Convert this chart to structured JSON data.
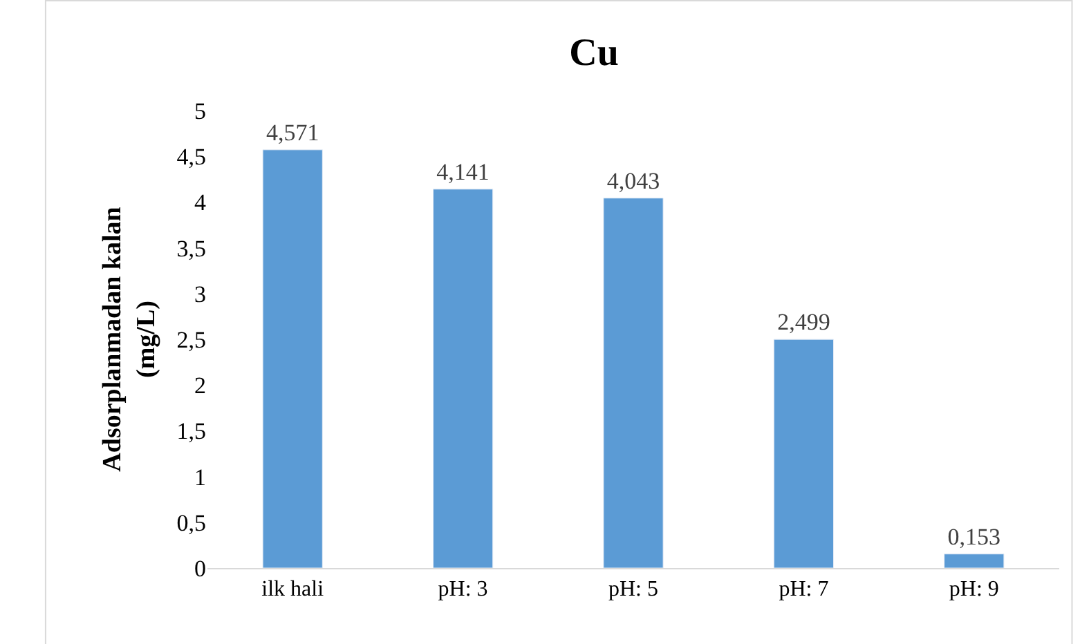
{
  "chart_data": {
    "type": "bar",
    "title": "Cu",
    "ylabel": "Adsorplanmadan kalan\n(mg/L)",
    "categories": [
      "ilk hali",
      "pH: 3",
      "pH: 5",
      "pH: 7",
      "pH: 9"
    ],
    "values": [
      4.571,
      4.141,
      4.043,
      2.499,
      0.153
    ],
    "value_labels": [
      "4,571",
      "4,141",
      "4,043",
      "2,499",
      "0,153"
    ],
    "color": "#5b9bd5",
    "ylim": [
      0,
      5
    ],
    "yticks": [
      0,
      {
        "value": 0.5,
        "label": "0,5"
      },
      1,
      {
        "value": 1.5,
        "label": "1,5"
      },
      2,
      {
        "value": 2.5,
        "label": "2,5"
      },
      3,
      {
        "value": 3.5,
        "label": "3,5"
      },
      4,
      {
        "value": 4.5,
        "label": "4,5"
      },
      5
    ],
    "grid": false,
    "legend": false
  }
}
